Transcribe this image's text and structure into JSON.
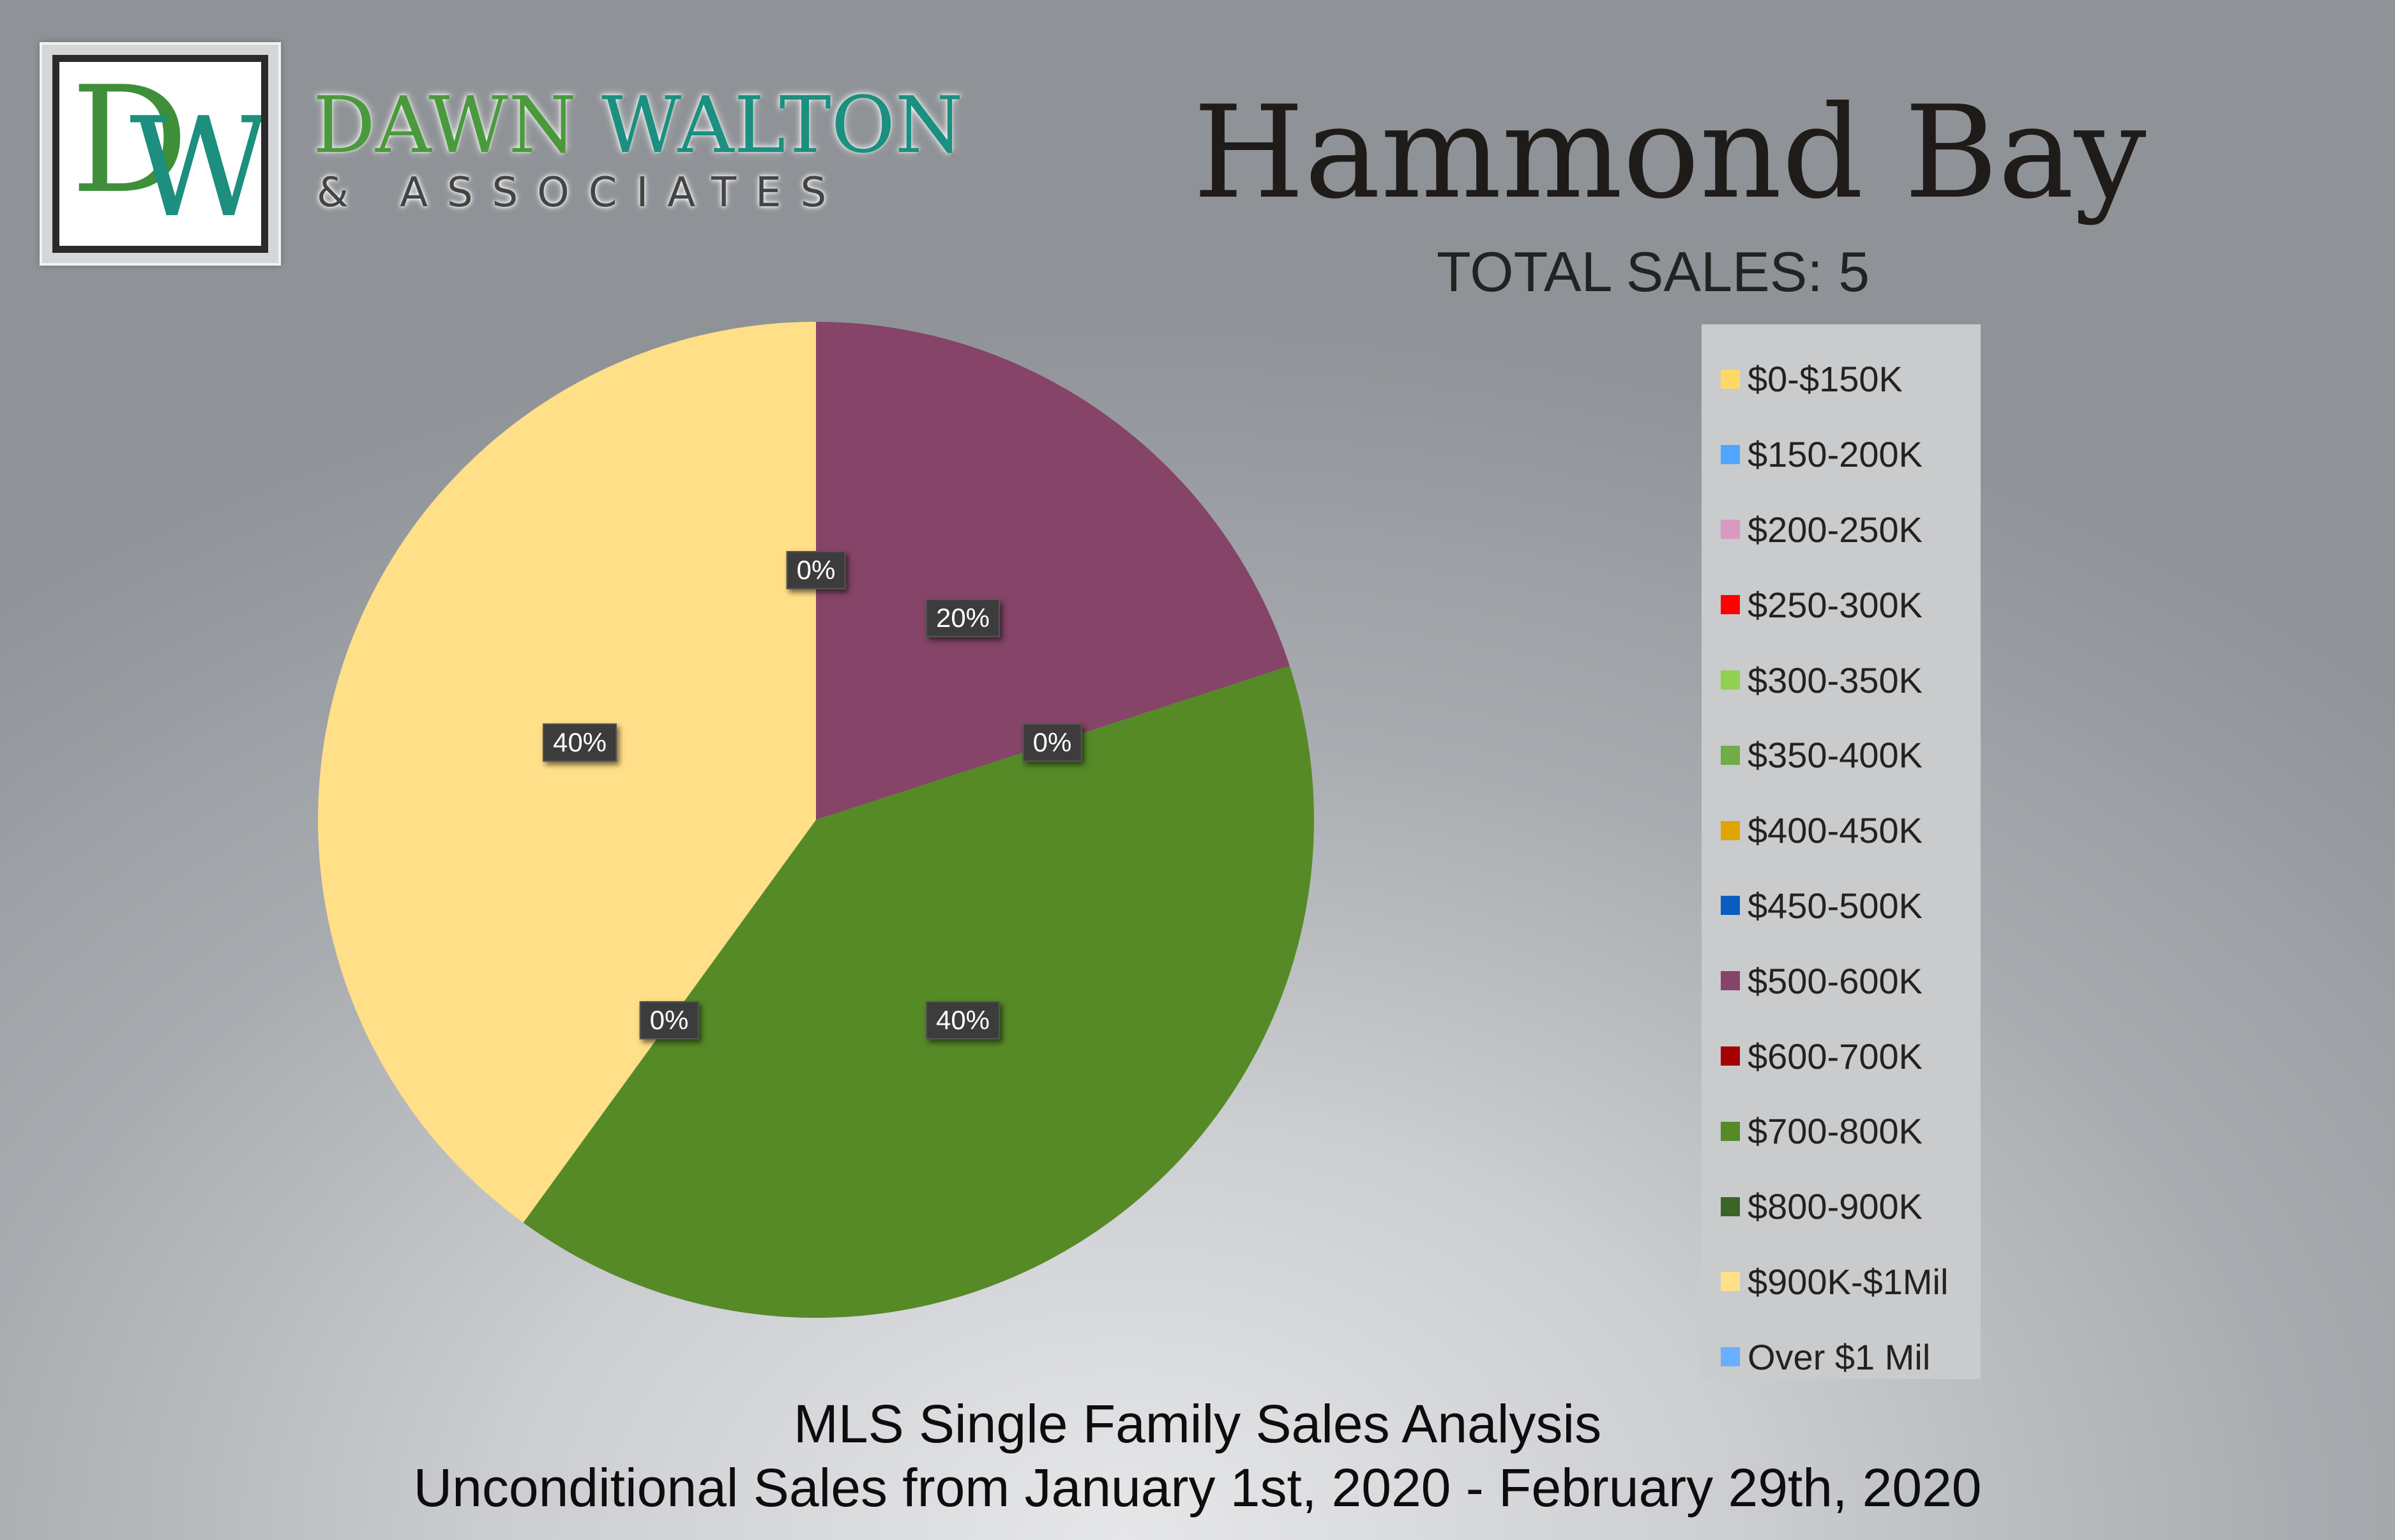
{
  "brand": {
    "logo_monogram_d": "D",
    "logo_monogram_w": "W",
    "name_part1": "DAWN",
    "name_part2": "WALTON",
    "subtitle": "& ASSOCIATES",
    "colors": {
      "green": "#4a9a3d",
      "teal": "#1b8f80"
    }
  },
  "header": {
    "title": "Hammond Bay",
    "total_sales": "TOTAL SALES: 5"
  },
  "chart_data": {
    "type": "pie",
    "categories": [
      "$0-$150K",
      "$150-200K",
      "$200-250K",
      "$250-300K",
      "$300-350K",
      "$350-400K",
      "$400-450K",
      "$450-500K",
      "$500-600K",
      "$600-700K",
      "$700-800K",
      "$800-900K",
      "$900K-$1Mil",
      "Over $1 Mil"
    ],
    "values": [
      0,
      0,
      0,
      0,
      0,
      0,
      0,
      0,
      20,
      0,
      40,
      0,
      40,
      0
    ],
    "colors": [
      "#ffd966",
      "#4ea6ff",
      "#d99ac2",
      "#ff0000",
      "#92d050",
      "#70ad47",
      "#e0a400",
      "#0b5cbf",
      "#854468",
      "#a40000",
      "#558a27",
      "#3a6428",
      "#ffdf88",
      "#6aaeff"
    ],
    "data_labels": [
      {
        "text": "0%"
      },
      {
        "text": "20%"
      },
      {
        "text": "0%"
      },
      {
        "text": "40%"
      },
      {
        "text": "0%"
      },
      {
        "text": "40%"
      }
    ],
    "legend_position": "right"
  },
  "footer": {
    "line1": "MLS Single Family Sales Analysis",
    "line2": "Unconditional Sales from January 1st, 2020 - February 29th, 2020"
  }
}
